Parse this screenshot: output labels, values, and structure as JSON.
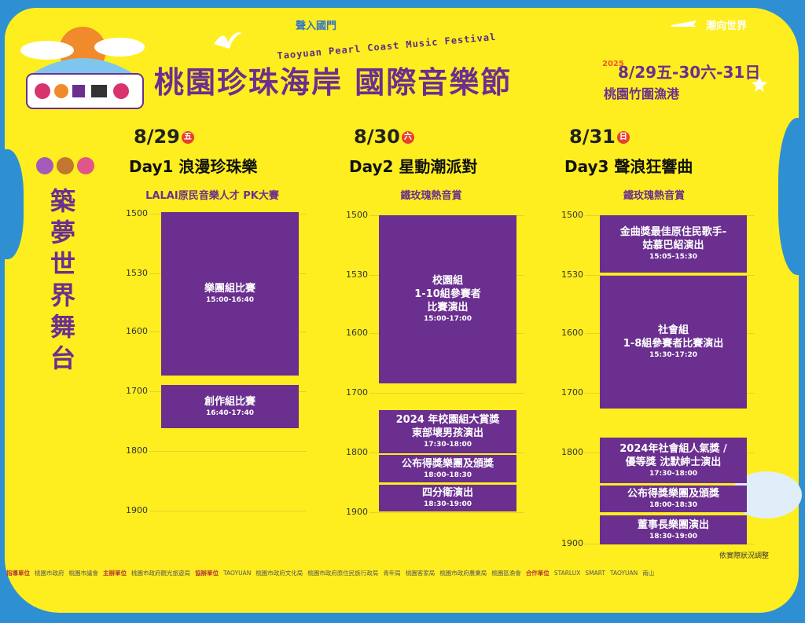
{
  "header": {
    "title": "桃園珍珠海岸 國際音樂節",
    "title_en": "Taoyuan Pearl Coast Music Festival",
    "tag_left": "聲入國門",
    "tag_right": "潮向世界",
    "year": "2025",
    "date_range": "8/29五-30六-31日",
    "venue": "桃園竹圍漁港"
  },
  "stage": "築夢世界舞台",
  "days": [
    {
      "date": "8/29",
      "weekday": "五",
      "title": "Day1 浪漫珍珠樂",
      "subtitle": "LALAI原民音樂人才 PK大賽",
      "ticks": [
        "1500",
        "1530",
        "1600",
        "1700",
        "1800",
        "1900"
      ],
      "events": [
        {
          "name": "樂團組比賽",
          "time": "15:00-16:40"
        },
        {
          "name": "創作組比賽",
          "time": "16:40-17:40"
        }
      ]
    },
    {
      "date": "8/30",
      "weekday": "六",
      "title": "Day2 星動潮派對",
      "subtitle": "鐵玫瑰熱音賞",
      "ticks": [
        "1500",
        "1530",
        "1600",
        "1700",
        "1800",
        "1900"
      ],
      "events": [
        {
          "name": "校園組\n1-10組參賽者\n比賽演出",
          "time": "15:00-17:00"
        },
        {
          "name": "2024 年校園組大賞獎\n東部壞男孩演出",
          "time": "17:30-18:00"
        },
        {
          "name": "公布得獎樂團及頒獎",
          "time": "18:00-18:30"
        },
        {
          "name": "四分衛演出",
          "time": "18:30-19:00"
        }
      ]
    },
    {
      "date": "8/31",
      "weekday": "日",
      "title": "Day3 聲浪狂響曲",
      "subtitle": "鐵玫瑰熱音賞",
      "ticks": [
        "1500",
        "1530",
        "1600",
        "1700",
        "1800",
        "1900"
      ],
      "events": [
        {
          "name": "金曲獎最佳原住民歌手-\n姑慕巴紹演出",
          "time": "15:05-15:30"
        },
        {
          "name": "社會組\n1-8組參賽者比賽演出",
          "time": "15:30-17:20"
        },
        {
          "name": "2024年社會組人氣獎 /\n優等獎 沈默紳士演出",
          "time": "17:30-18:00"
        },
        {
          "name": "公布得獎樂團及頒獎",
          "time": "18:00-18:30"
        },
        {
          "name": "董事長樂團演出",
          "time": "18:30-19:00"
        }
      ]
    }
  ],
  "note": "依實際狀況調整",
  "footer": {
    "guide_label": "指導單位",
    "guide_orgs": [
      "桃園市政府",
      "桃園市議會"
    ],
    "host_label": "主辦單位",
    "host_orgs": [
      "桃園市政府觀光旅遊局"
    ],
    "co_label": "協辦單位",
    "co_orgs": [
      "TAOYUAN",
      "桃園市政府文化局",
      "桃園市政府原住民族行政局",
      "青年局",
      "桃園客家局",
      "桃園市政府農業局",
      "桃園區漁會"
    ],
    "partner_label": "合作單位",
    "partner_orgs": [
      "STARLUX",
      "SMART",
      "TAOYUAN",
      "南山"
    ]
  },
  "colors": {
    "background": "#ffee1f",
    "accent": "#6a2f8f",
    "sea": "#2f8fd3",
    "weekday": "#e8402e"
  }
}
